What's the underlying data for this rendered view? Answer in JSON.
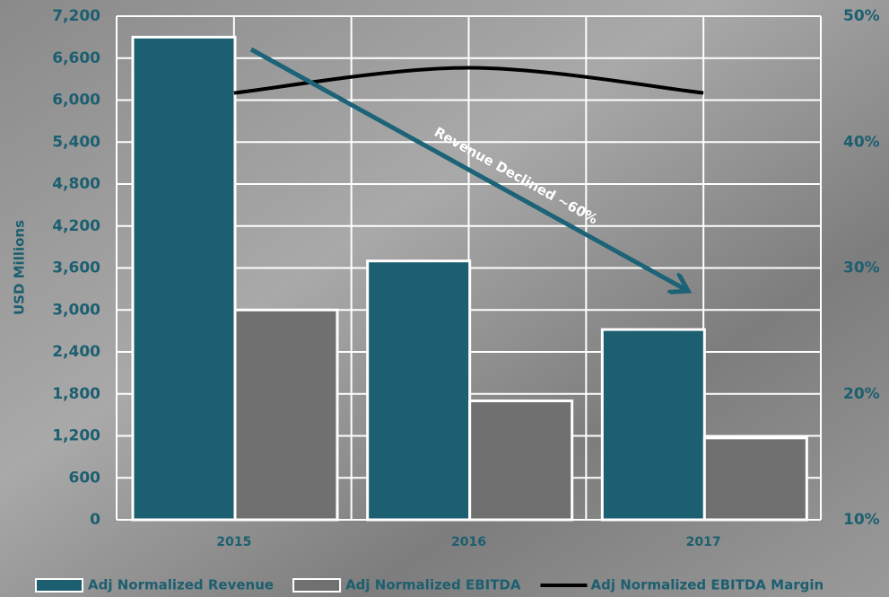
{
  "chart_data": {
    "type": "bar",
    "y_label": "USD Millions",
    "categories": [
      "2015",
      "2016",
      "2017"
    ],
    "series": [
      {
        "name": "Adj Normalized Revenue",
        "color": "#1c5f70",
        "values": [
          6900,
          3700,
          2720
        ]
      },
      {
        "name": "Adj Normalized EBITDA",
        "color": "#707070",
        "values": [
          3000,
          1700,
          1170
        ]
      },
      {
        "name": "Adj Normalized EBITDA Margin",
        "color": "#000000",
        "type": "line",
        "axis": "y2",
        "values": [
          43.9,
          45.9,
          43.9
        ]
      }
    ],
    "ylim": [
      0,
      7200
    ],
    "yticks": [
      0,
      600,
      {
        "value": 1200,
        "label": "1,200"
      },
      {
        "value": 1800,
        "label": "1,800"
      },
      {
        "value": 2400,
        "label": "2,400"
      },
      {
        "value": 3000,
        "label": "3,000"
      },
      {
        "value": 3600,
        "label": "3,600"
      },
      {
        "value": 4200,
        "label": "4,200"
      },
      {
        "value": 4800,
        "label": "4,800"
      },
      {
        "value": 5400,
        "label": "5,400"
      },
      {
        "value": 6000,
        "label": "6,000"
      },
      {
        "value": 6600,
        "label": "6,600"
      },
      {
        "value": 7200,
        "label": "7,200"
      }
    ],
    "y2lim": [
      10,
      50
    ],
    "y2ticks": [
      {
        "value": 10,
        "label": "10%"
      },
      {
        "value": 20,
        "label": "20%"
      },
      {
        "value": 30,
        "label": "30%"
      },
      {
        "value": 40,
        "label": "40%"
      },
      {
        "value": 50,
        "label": "50%"
      }
    ],
    "annotation": "Revenue Declined ~60%",
    "grid": true,
    "legend": "bottom"
  }
}
